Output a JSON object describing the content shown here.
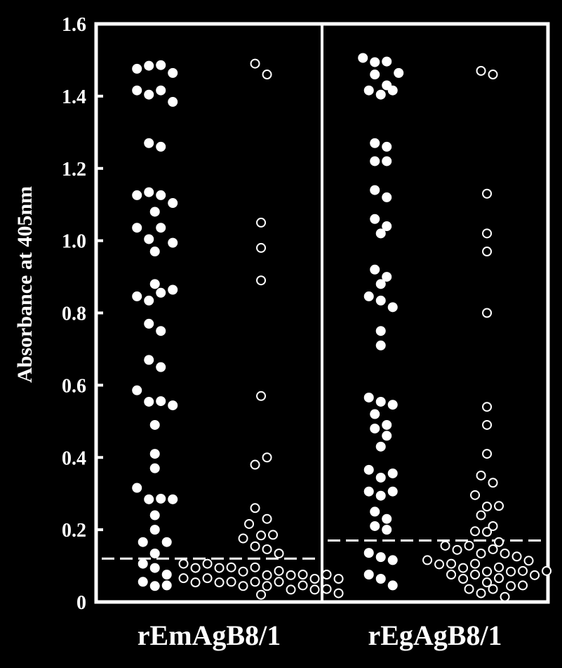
{
  "chart_data": {
    "type": "scatter",
    "ylabel": "Absorbance at 405nm",
    "ylim": [
      0,
      1.6
    ],
    "yticks": [
      "0",
      "0.2",
      "0.4",
      "0.6",
      "0.8",
      "1.0",
      "1.2",
      "1.4",
      "1.6"
    ],
    "grid": false,
    "panels": [
      {
        "label": "rEmAgB8/1",
        "cutoff": 0.12,
        "series": [
          {
            "marker": "filled",
            "values": [
              1.47,
              1.49,
              1.48,
              1.47,
              1.41,
              1.41,
              1.41,
              1.39,
              1.27,
              1.26,
              1.12,
              1.14,
              1.12,
              1.11,
              1.08,
              1.03,
              1.01,
              1.03,
              1.0,
              0.97,
              0.84,
              0.84,
              0.88,
              0.85,
              0.87,
              0.77,
              0.75,
              0.67,
              0.65,
              0.58,
              0.56,
              0.55,
              0.55,
              0.49,
              0.41,
              0.37,
              0.31,
              0.29,
              0.28,
              0.29,
              0.24,
              0.2,
              0.16,
              0.14,
              0.16,
              0.1,
              0.1,
              0.07,
              0.05,
              0.05,
              0.04
            ]
          },
          {
            "marker": "open",
            "values": [
              1.49,
              1.46,
              1.05,
              0.98,
              0.89,
              0.57,
              0.38,
              0.4,
              0.26,
              0.23,
              0.21,
              0.19,
              0.17,
              0.16,
              0.14,
              0.18,
              0.14,
              0.1,
              0.1,
              0.1,
              0.1,
              0.09,
              0.09,
              0.09,
              0.08,
              0.08,
              0.08,
              0.07,
              0.07,
              0.07,
              0.07,
              0.06,
              0.06,
              0.06,
              0.06,
              0.05,
              0.05,
              0.05,
              0.05,
              0.05,
              0.04,
              0.04,
              0.04,
              0.03,
              0.03,
              0.02
            ]
          }
        ]
      },
      {
        "label": "rEgAgB8/1",
        "cutoff": 0.17,
        "series": [
          {
            "marker": "filled",
            "values": [
              1.5,
              1.5,
              1.49,
              1.47,
              1.46,
              1.43,
              1.41,
              1.41,
              1.41,
              1.27,
              1.26,
              1.22,
              1.22,
              1.14,
              1.12,
              1.06,
              1.04,
              1.02,
              0.92,
              0.9,
              0.88,
              0.84,
              0.84,
              0.81,
              0.75,
              0.71,
              0.56,
              0.56,
              0.54,
              0.52,
              0.49,
              0.48,
              0.46,
              0.43,
              0.36,
              0.35,
              0.35,
              0.3,
              0.3,
              0.3,
              0.25,
              0.23,
              0.21,
              0.2,
              0.13,
              0.13,
              0.11,
              0.07,
              0.07,
              0.04
            ]
          },
          {
            "marker": "open",
            "values": [
              1.47,
              1.46,
              1.13,
              1.02,
              0.97,
              0.8,
              0.54,
              0.49,
              0.41,
              0.35,
              0.33,
              0.29,
              0.27,
              0.26,
              0.24,
              0.21,
              0.19,
              0.2,
              0.16,
              0.15,
              0.15,
              0.15,
              0.14,
              0.14,
              0.14,
              0.12,
              0.12,
              0.11,
              0.11,
              0.1,
              0.1,
              0.1,
              0.09,
              0.09,
              0.09,
              0.08,
              0.08,
              0.08,
              0.07,
              0.07,
              0.07,
              0.06,
              0.06,
              0.05,
              0.04,
              0.03,
              0.03,
              0.03,
              0.02
            ]
          }
        ]
      }
    ]
  }
}
